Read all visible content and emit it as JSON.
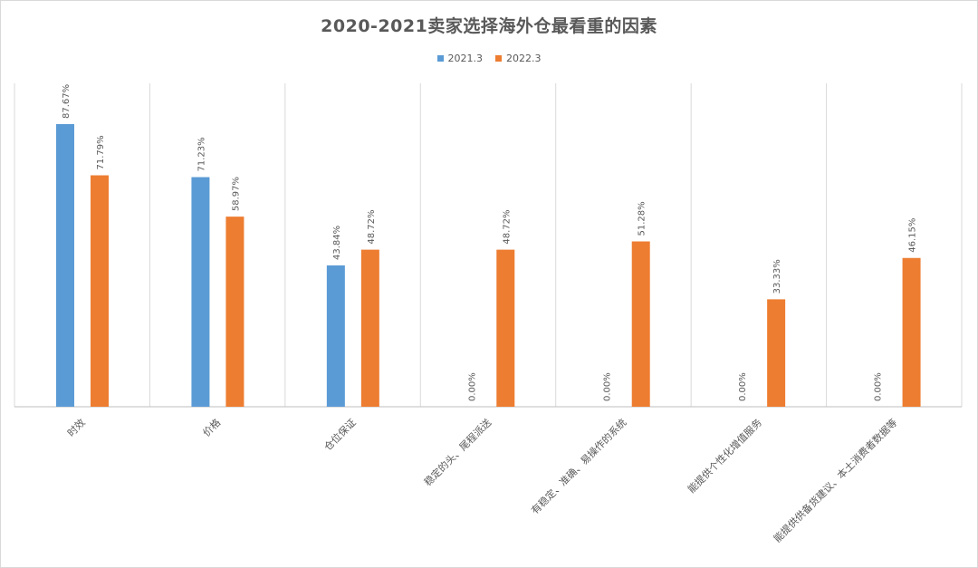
{
  "chart_data": {
    "type": "bar",
    "title": "2020-2021卖家选择海外仓最看重的因素",
    "categories": [
      "时效",
      "价格",
      "仓位保证",
      "稳定的头、尾程派送",
      "有稳定、准确、易操作的系统",
      "能提供个性化增值服务",
      "能提供供备货建议、本土消费者数据等"
    ],
    "series": [
      {
        "name": "2021.3",
        "color": "#5b9bd5",
        "values": [
          87.67,
          71.23,
          43.84,
          0.0,
          0.0,
          0.0,
          0.0
        ]
      },
      {
        "name": "2022.3",
        "color": "#ed7d31",
        "values": [
          71.79,
          58.97,
          48.72,
          48.72,
          51.28,
          33.33,
          46.15
        ]
      }
    ],
    "data_labels": [
      [
        "87.67%",
        "71.23%",
        "43.84%",
        "0.00%",
        "0.00%",
        "0.00%",
        "0.00%"
      ],
      [
        "71.79%",
        "58.97%",
        "48.72%",
        "48.72%",
        "51.28%",
        "33.33%",
        "46.15%"
      ]
    ],
    "ylim": [
      0,
      100
    ],
    "xlabel": "",
    "ylabel": "",
    "legend_position": "top",
    "grid": "vertical category separators"
  }
}
